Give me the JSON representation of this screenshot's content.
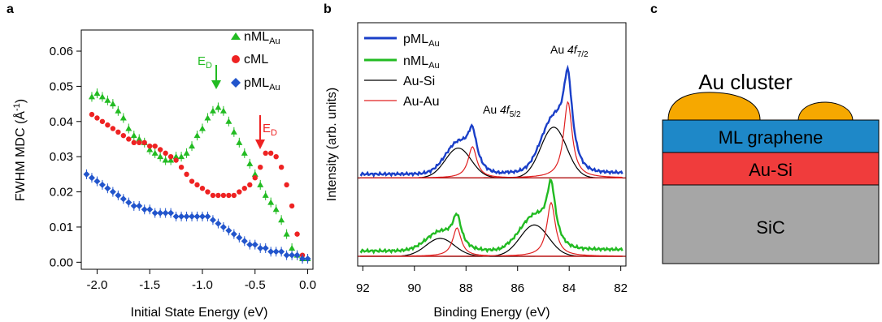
{
  "panels": {
    "a": {
      "letter": "a",
      "xlabel": "Initial State Energy (eV)",
      "ylabel_main": "FWHM MDC (",
      "ylabel_unit": "Å",
      "ylabel_exp": "-1",
      "ylabel_close": ")",
      "xticks": [
        "-2.0",
        "-1.5",
        "-1.0",
        "-0.5",
        "0.0"
      ],
      "yticks": [
        "0.00",
        "0.01",
        "0.02",
        "0.03",
        "0.04",
        "0.05",
        "0.06"
      ],
      "legend": [
        {
          "main": "nML",
          "sub": "Au",
          "color": "#22bb22",
          "marker": "triangle"
        },
        {
          "main": "cML",
          "sub": "",
          "color": "#ee2222",
          "marker": "circle"
        },
        {
          "main": "pML",
          "sub": "Au",
          "color": "#2255cc",
          "marker": "diamond"
        }
      ],
      "ed_label_main": "E",
      "ed_label_sub": "D"
    },
    "b": {
      "letter": "b",
      "xlabel": "Binding Energy (eV)",
      "ylabel": "Intensity (arb. units)",
      "xticks": [
        "92",
        "90",
        "88",
        "86",
        "84",
        "82"
      ],
      "legend": [
        {
          "main": "pML",
          "sub": "Au",
          "color": "#1a3fc8"
        },
        {
          "main": "nML",
          "sub": "Au",
          "color": "#22bb22"
        },
        {
          "main": "Au-Si",
          "sub": "",
          "color": "#000000"
        },
        {
          "main": "Au-Au",
          "sub": "",
          "color": "#e02020"
        }
      ],
      "peak_72": {
        "prefix": "Au ",
        "italic": "4f",
        "sub": "7/2"
      },
      "peak_52": {
        "prefix": "Au ",
        "italic": "4f",
        "sub": "5/2"
      }
    },
    "c": {
      "letter": "c",
      "cluster_label": "Au cluster",
      "layers": [
        {
          "label": "ML graphene",
          "color": "#1e88c8"
        },
        {
          "label": "Au-Si",
          "color": "#f03c3c"
        },
        {
          "label": "SiC",
          "color": "#a6a6a6"
        }
      ],
      "cluster_color": "#f6a800"
    }
  },
  "chart_data": [
    {
      "type": "scatter",
      "title": "",
      "xlabel": "Initial State Energy (eV)",
      "ylabel": "FWHM MDC (Å-1)",
      "xlim": [
        -2.15,
        0.05
      ],
      "ylim": [
        -0.002,
        0.066
      ],
      "grid": false,
      "legend_position": "top-right",
      "series": [
        {
          "name": "nMLAu",
          "x": [
            -2.05,
            -2.0,
            -1.95,
            -1.9,
            -1.85,
            -1.8,
            -1.75,
            -1.7,
            -1.65,
            -1.6,
            -1.55,
            -1.5,
            -1.45,
            -1.4,
            -1.35,
            -1.3,
            -1.25,
            -1.2,
            -1.15,
            -1.1,
            -1.05,
            -1.0,
            -0.95,
            -0.9,
            -0.85,
            -0.8,
            -0.75,
            -0.7,
            -0.65,
            -0.6,
            -0.55,
            -0.5,
            -0.45,
            -0.4,
            -0.35,
            -0.3,
            -0.25,
            -0.2,
            -0.15,
            -0.1,
            -0.05,
            0.0
          ],
          "y": [
            0.047,
            0.048,
            0.047,
            0.046,
            0.045,
            0.043,
            0.041,
            0.038,
            0.036,
            0.035,
            0.034,
            0.032,
            0.031,
            0.03,
            0.029,
            0.029,
            0.03,
            0.03,
            0.031,
            0.033,
            0.036,
            0.038,
            0.041,
            0.043,
            0.044,
            0.043,
            0.04,
            0.037,
            0.034,
            0.031,
            0.028,
            0.025,
            0.022,
            0.019,
            0.017,
            0.015,
            0.012,
            0.008,
            0.004,
            0.002,
            0.001,
            0.001
          ]
        },
        {
          "name": "cML",
          "x": [
            -2.05,
            -2.0,
            -1.95,
            -1.9,
            -1.85,
            -1.8,
            -1.75,
            -1.7,
            -1.65,
            -1.6,
            -1.55,
            -1.5,
            -1.45,
            -1.4,
            -1.35,
            -1.3,
            -1.25,
            -1.2,
            -1.15,
            -1.1,
            -1.05,
            -1.0,
            -0.95,
            -0.9,
            -0.85,
            -0.8,
            -0.75,
            -0.7,
            -0.65,
            -0.6,
            -0.55,
            -0.5,
            -0.45,
            -0.4,
            -0.35,
            -0.3,
            -0.25,
            -0.2,
            -0.15,
            -0.1,
            -0.05
          ],
          "y": [
            0.042,
            0.041,
            0.04,
            0.039,
            0.038,
            0.037,
            0.036,
            0.035,
            0.034,
            0.034,
            0.034,
            0.033,
            0.033,
            0.032,
            0.031,
            0.03,
            0.029,
            0.027,
            0.025,
            0.023,
            0.022,
            0.021,
            0.02,
            0.019,
            0.019,
            0.019,
            0.019,
            0.019,
            0.02,
            0.021,
            0.022,
            0.024,
            0.027,
            0.031,
            0.031,
            0.03,
            0.027,
            0.022,
            0.016,
            0.008,
            0.002
          ]
        },
        {
          "name": "pMLAu",
          "x": [
            -2.1,
            -2.05,
            -2.0,
            -1.95,
            -1.9,
            -1.85,
            -1.8,
            -1.75,
            -1.7,
            -1.65,
            -1.6,
            -1.55,
            -1.5,
            -1.45,
            -1.4,
            -1.35,
            -1.3,
            -1.25,
            -1.2,
            -1.15,
            -1.1,
            -1.05,
            -1.0,
            -0.95,
            -0.9,
            -0.85,
            -0.8,
            -0.75,
            -0.7,
            -0.65,
            -0.6,
            -0.55,
            -0.5,
            -0.45,
            -0.4,
            -0.35,
            -0.3,
            -0.25,
            -0.2,
            -0.15,
            -0.1,
            -0.05,
            0.0
          ],
          "y": [
            0.025,
            0.024,
            0.023,
            0.022,
            0.021,
            0.02,
            0.019,
            0.018,
            0.017,
            0.016,
            0.016,
            0.015,
            0.015,
            0.014,
            0.014,
            0.014,
            0.014,
            0.013,
            0.013,
            0.013,
            0.013,
            0.013,
            0.013,
            0.013,
            0.012,
            0.011,
            0.01,
            0.009,
            0.008,
            0.007,
            0.006,
            0.005,
            0.005,
            0.004,
            0.004,
            0.003,
            0.003,
            0.003,
            0.002,
            0.002,
            0.002,
            0.001,
            0.001
          ]
        }
      ],
      "annotations": [
        {
          "text": "ED",
          "x": -0.83,
          "color": "#22bb22"
        },
        {
          "text": "ED",
          "x": -0.42,
          "color": "#ee2222"
        }
      ]
    },
    {
      "type": "line",
      "title": "",
      "xlabel": "Binding Energy (eV)",
      "ylabel": "Intensity (arb. units)",
      "xlim": [
        92.2,
        81.8
      ],
      "x_reversed": true,
      "grid": false,
      "legend_position": "top-left",
      "components": {
        "pMLAu": {
          "offset": 1.05,
          "baseline": 0.05,
          "AuSi": [
            {
              "center": 88.3,
              "height": 0.4,
              "width": 0.5
            },
            {
              "center": 84.6,
              "height": 0.68,
              "width": 0.5
            }
          ],
          "AuAu": [
            {
              "center": 87.75,
              "height": 0.42,
              "width": 0.2
            },
            {
              "center": 84.05,
              "height": 1.02,
              "width": 0.2
            }
          ]
        },
        "nMLAu": {
          "offset": 0.0,
          "baseline": 0.07,
          "AuSi": [
            {
              "center": 89.0,
              "height": 0.24,
              "width": 0.55
            },
            {
              "center": 85.35,
              "height": 0.42,
              "width": 0.55
            }
          ],
          "AuAu": [
            {
              "center": 88.35,
              "height": 0.38,
              "width": 0.2
            },
            {
              "center": 84.7,
              "height": 0.72,
              "width": 0.2
            }
          ]
        }
      },
      "annotations": [
        "Au 4f7/2",
        "Au 4f5/2"
      ]
    }
  ]
}
